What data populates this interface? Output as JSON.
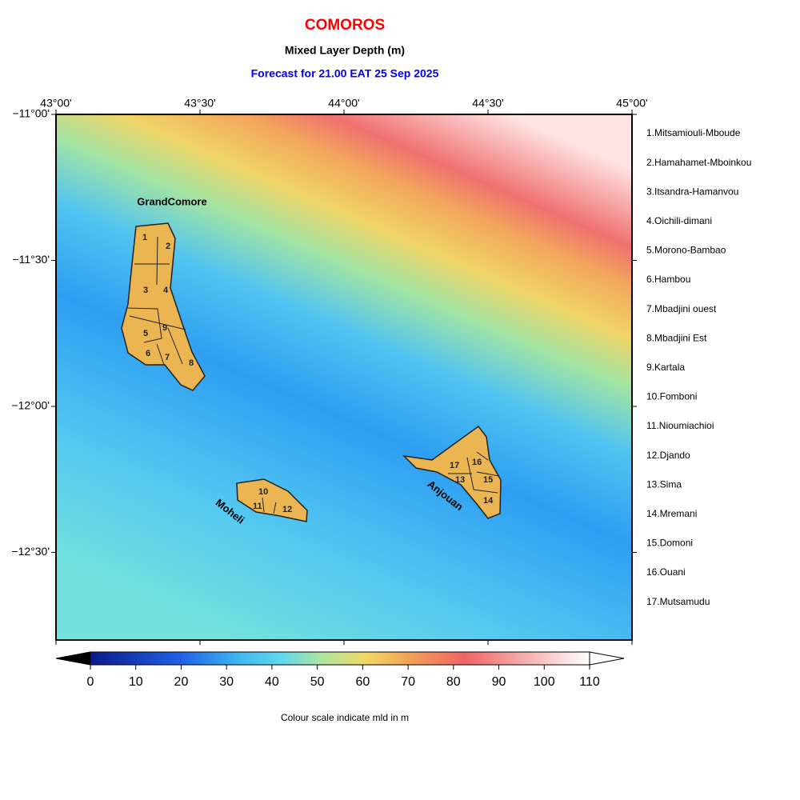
{
  "header": {
    "title": "COMOROS",
    "subtitle": "Mixed Layer Depth (m)",
    "forecast": "Forecast for  21.00 EAT 25 Sep 2025"
  },
  "map": {
    "lon_labels": [
      "43°00'",
      "43°30'",
      "44°00'",
      "44°30'",
      "45°00'"
    ],
    "lat_labels": [
      "−11°00'",
      "−11°30'",
      "−12°00'",
      "−12°30'"
    ],
    "islands": [
      "GrandComore",
      "Moheli",
      "Anjouan"
    ],
    "district_numbers": [
      "1",
      "2",
      "3",
      "4",
      "5",
      "6",
      "7",
      "8",
      "9",
      "10",
      "11",
      "12",
      "13",
      "14",
      "15",
      "16",
      "17"
    ]
  },
  "legend": {
    "districts": [
      "1.Mitsamiouli-Mboude",
      "2.Hamahamet-Mboinkou",
      "3.Itsandra-Hamanvou",
      "4.Oichili-dimani",
      "5.Morono-Bambao",
      "6.Hambou",
      "7.Mbadjini ouest",
      "8.Mbadjini Est",
      "9.Kartala",
      "10.Fomboni",
      "11.Nioumiachioi",
      "12.Djando",
      "13.Sima",
      "14.Mremani",
      "15.Domoni",
      "16.Ouani",
      "17.Mutsamudu"
    ]
  },
  "colorbar": {
    "ticks": [
      0,
      10,
      20,
      30,
      40,
      50,
      60,
      70,
      80,
      90,
      100,
      110
    ],
    "caption": "Colour scale indicate mld in m"
  }
}
